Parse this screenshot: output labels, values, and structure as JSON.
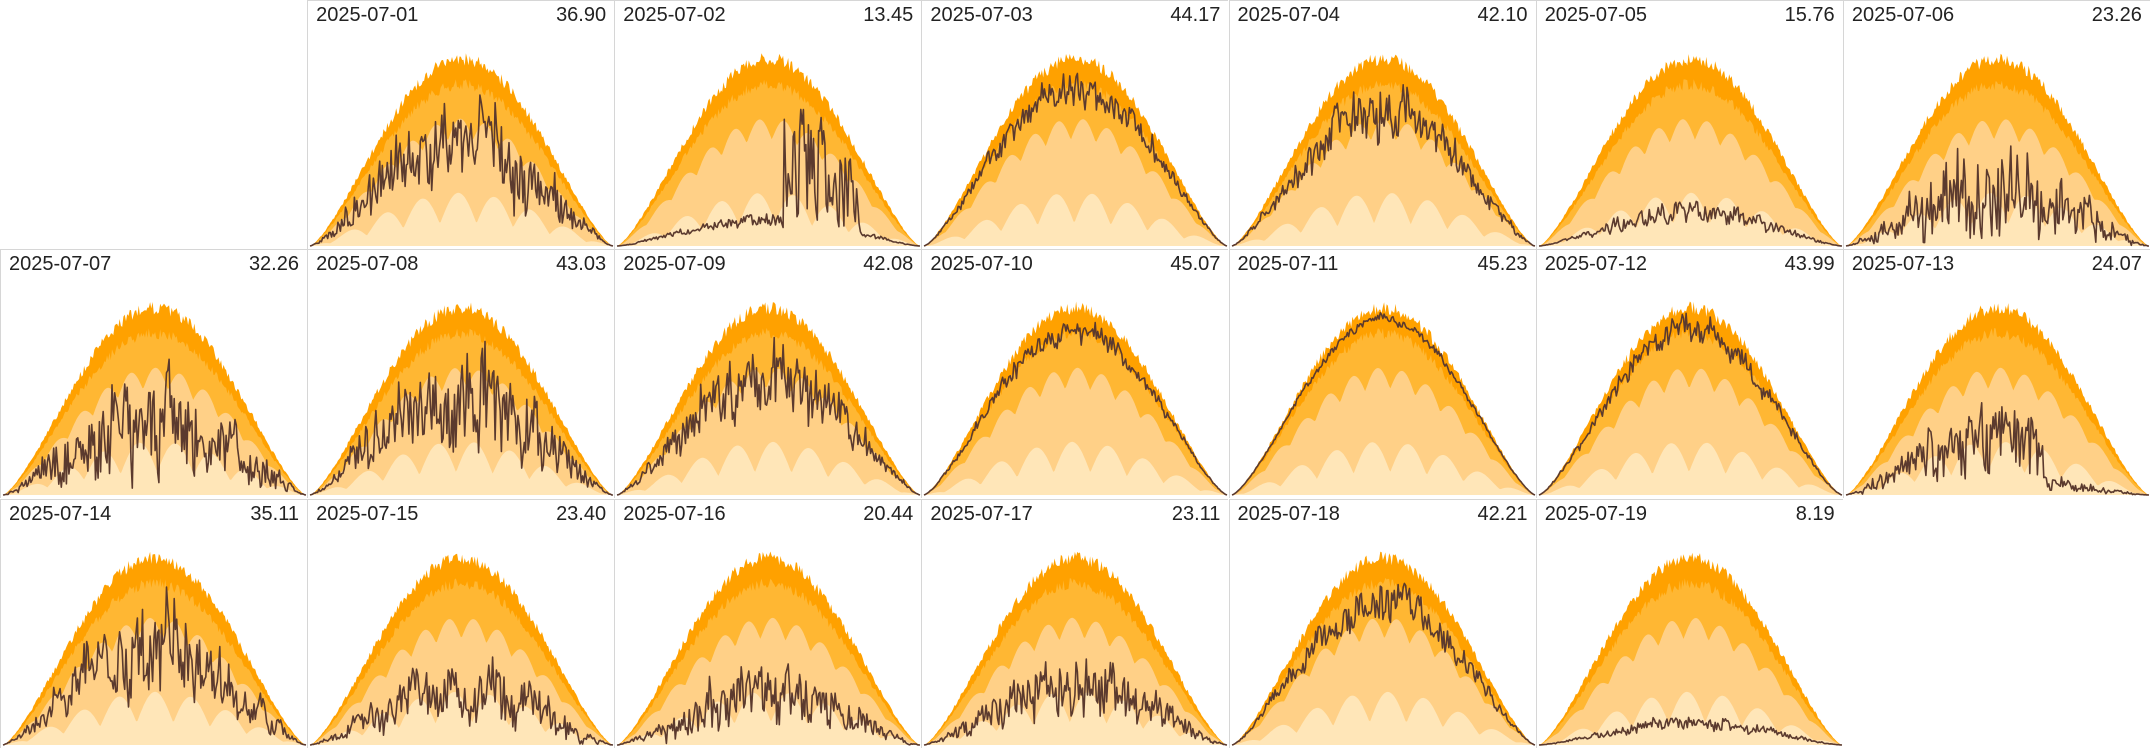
{
  "chart_data": {
    "type": "area",
    "title": "",
    "layout": "calendar-grid",
    "columns": 7,
    "first_day_offset": 1,
    "colors": {
      "band_low": "#ffe6b8",
      "band_mid": "#ffd087",
      "band_high": "#ffb733",
      "band_top": "#ffa100",
      "actual_line": "#5b3a2e",
      "grid_line": "#d6d6d6"
    },
    "days": [
      {
        "date": "2025-07-01",
        "total": "36.90",
        "seed": 11,
        "ratio": 0.85,
        "noise": 0.45
      },
      {
        "date": "2025-07-02",
        "total": "13.45",
        "seed": 12,
        "ratio": 0.18,
        "noise": 0.3,
        "late_boost": 0.7
      },
      {
        "date": "2025-07-03",
        "total": "44.17",
        "seed": 13,
        "ratio": 0.95,
        "noise": 0.15
      },
      {
        "date": "2025-07-04",
        "total": "42.10",
        "seed": 14,
        "ratio": 0.9,
        "noise": 0.25
      },
      {
        "date": "2025-07-05",
        "total": "15.76",
        "seed": 15,
        "ratio": 0.24,
        "noise": 0.35
      },
      {
        "date": "2025-07-06",
        "total": "23.26",
        "seed": 16,
        "ratio": 0.55,
        "noise": 0.65
      },
      {
        "date": "2025-07-07",
        "total": "32.26",
        "seed": 17,
        "ratio": 0.75,
        "noise": 0.6
      },
      {
        "date": "2025-07-08",
        "total": "43.03",
        "seed": 18,
        "ratio": 0.85,
        "noise": 0.5
      },
      {
        "date": "2025-07-09",
        "total": "42.08",
        "seed": 19,
        "ratio": 0.85,
        "noise": 0.35
      },
      {
        "date": "2025-07-10",
        "total": "45.07",
        "seed": 20,
        "ratio": 0.95,
        "noise": 0.1
      },
      {
        "date": "2025-07-11",
        "total": "45.23",
        "seed": 21,
        "ratio": 0.96,
        "noise": 0.04
      },
      {
        "date": "2025-07-12",
        "total": "43.99",
        "seed": 22,
        "ratio": 0.95,
        "noise": 0.12
      },
      {
        "date": "2025-07-13",
        "total": "24.07",
        "seed": 23,
        "ratio": 0.55,
        "noise": 0.55,
        "late_drop": 0.75
      },
      {
        "date": "2025-07-14",
        "total": "35.11",
        "seed": 24,
        "ratio": 0.8,
        "noise": 0.45
      },
      {
        "date": "2025-07-15",
        "total": "23.40",
        "seed": 25,
        "ratio": 0.5,
        "noise": 0.55
      },
      {
        "date": "2025-07-16",
        "total": "20.44",
        "seed": 26,
        "ratio": 0.45,
        "noise": 0.55
      },
      {
        "date": "2025-07-17",
        "total": "23.11",
        "seed": 27,
        "ratio": 0.5,
        "noise": 0.5
      },
      {
        "date": "2025-07-18",
        "total": "42.21",
        "seed": 28,
        "ratio": 0.92,
        "noise": 0.2
      },
      {
        "date": "2025-07-19",
        "total": "8.19",
        "seed": 29,
        "ratio": 0.16,
        "noise": 0.35
      }
    ]
  }
}
